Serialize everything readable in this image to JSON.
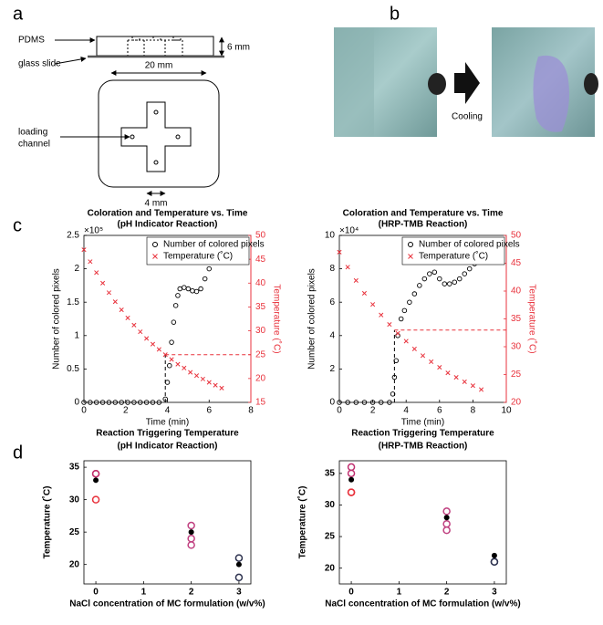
{
  "panels": {
    "a": "a",
    "b": "b",
    "c": "c",
    "d": "d"
  },
  "diagram": {
    "pdms": "PDMS",
    "glass": "glass slide",
    "height": "6 mm",
    "width": "20 mm",
    "channel": [
      "loading",
      "channel"
    ],
    "arm": "4 mm"
  },
  "photos": {
    "arrow_label": "Cooling"
  },
  "chart_data": [
    {
      "type": "scatter",
      "title": "Coloration and Temperature vs. Time",
      "subtitle": "(pH Indicator Reaction)",
      "xlabel": "Time (min)",
      "ylabel": "Number of colored pixels",
      "y2label": "Temperature (˚C)",
      "y_multiplier": "×10⁵",
      "xlim": [
        0,
        8
      ],
      "xticks": [
        0,
        2,
        4,
        6,
        8
      ],
      "ylim": [
        0,
        2.5
      ],
      "yticks": [
        0,
        0.5,
        1,
        1.5,
        2,
        2.5
      ],
      "y2lim": [
        15,
        50
      ],
      "y2ticks": [
        15,
        20,
        25,
        30,
        35,
        40,
        45,
        50
      ],
      "y2color": "#e8323c",
      "legend": "upper right",
      "threshold": {
        "x": 3.9,
        "y": 25
      },
      "series": [
        {
          "name": "Number of colored pixels",
          "color": "#000000",
          "marker": "o",
          "x": [
            0,
            0.3,
            0.6,
            0.9,
            1.2,
            1.5,
            1.8,
            2.1,
            2.4,
            2.7,
            3.0,
            3.3,
            3.6,
            3.9,
            4.0,
            4.1,
            4.2,
            4.3,
            4.4,
            4.5,
            4.6,
            4.8,
            5.0,
            5.2,
            5.4,
            5.6,
            5.8,
            6.0,
            6.2,
            6.4
          ],
          "values": [
            0,
            0,
            0,
            0,
            0,
            0,
            0,
            0,
            0,
            0,
            0,
            0,
            0,
            0.05,
            0.3,
            0.55,
            0.9,
            1.2,
            1.45,
            1.6,
            1.7,
            1.72,
            1.7,
            1.67,
            1.66,
            1.7,
            1.85,
            2.0,
            2.1,
            2.2
          ]
        },
        {
          "name": "Temperature (˚C)",
          "color": "#e8323c",
          "marker": "x",
          "axis": "y2",
          "x": [
            0,
            0.3,
            0.6,
            0.9,
            1.2,
            1.5,
            1.8,
            2.1,
            2.4,
            2.7,
            3.0,
            3.3,
            3.6,
            3.9,
            4.2,
            4.5,
            4.8,
            5.1,
            5.4,
            5.7,
            6.0,
            6.3,
            6.6
          ],
          "values": [
            47.0,
            44.5,
            42.2,
            40.0,
            38.0,
            36.1,
            34.4,
            32.7,
            31.2,
            29.8,
            28.4,
            27.2,
            26.1,
            25.0,
            24.0,
            23.0,
            22.2,
            21.3,
            20.6,
            19.9,
            19.2,
            18.6,
            18.0
          ]
        }
      ]
    },
    {
      "type": "scatter",
      "title": "Coloration and Temperature vs. Time",
      "subtitle": "(HRP-TMB Reaction)",
      "xlabel": "Time (min)",
      "ylabel": "Number of colored pixels",
      "y2label": "Temperature (˚C)",
      "y_multiplier": "×10⁴",
      "xlim": [
        0,
        10
      ],
      "xticks": [
        0,
        2,
        4,
        6,
        8,
        10
      ],
      "ylim": [
        0,
        10
      ],
      "yticks": [
        0,
        2,
        4,
        6,
        8,
        10
      ],
      "y2lim": [
        20,
        50
      ],
      "y2ticks": [
        20,
        25,
        30,
        35,
        40,
        45,
        50
      ],
      "y2color": "#e8323c",
      "legend": "upper right",
      "threshold": {
        "x": 3.3,
        "y": 33
      },
      "series": [
        {
          "name": "Number of colored pixels",
          "color": "#000000",
          "marker": "o",
          "x": [
            0,
            0.5,
            1.0,
            1.5,
            2.0,
            2.5,
            3.0,
            3.2,
            3.3,
            3.4,
            3.5,
            3.7,
            3.9,
            4.2,
            4.5,
            4.8,
            5.1,
            5.4,
            5.7,
            6.0,
            6.3,
            6.6,
            6.9,
            7.2,
            7.5,
            7.8,
            8.1,
            8.4,
            8.7
          ],
          "values": [
            0,
            0,
            0,
            0,
            0,
            0,
            0,
            0.5,
            1.5,
            2.5,
            4.0,
            5.0,
            5.5,
            6.0,
            6.5,
            7.0,
            7.4,
            7.7,
            7.8,
            7.4,
            7.1,
            7.1,
            7.2,
            7.4,
            7.7,
            8.0,
            8.3,
            8.6,
            8.9
          ]
        },
        {
          "name": "Temperature (˚C)",
          "color": "#e8323c",
          "marker": "x",
          "axis": "y2",
          "x": [
            0,
            0.5,
            1.0,
            1.5,
            2.0,
            2.5,
            3.0,
            3.5,
            4.0,
            4.5,
            5.0,
            5.5,
            6.0,
            6.5,
            7.0,
            7.5,
            8.0,
            8.5
          ],
          "values": [
            47.0,
            44.3,
            41.9,
            39.6,
            37.6,
            35.7,
            34.0,
            32.4,
            31.0,
            29.6,
            28.4,
            27.3,
            26.3,
            25.3,
            24.5,
            23.7,
            23.0,
            22.3
          ]
        }
      ]
    },
    {
      "type": "scatter",
      "title": "Reaction Triggering Temperature",
      "subtitle": "(pH Indicator Reaction)",
      "xlabel": "NaCl concentration of MC formulation (w/v%)",
      "ylabel": "Temperature (˚C)",
      "xlim": [
        -0.25,
        3.25
      ],
      "xticks": [
        0,
        1,
        2,
        3
      ],
      "ylim": [
        17,
        36
      ],
      "yticks": [
        20,
        25,
        30,
        35
      ],
      "series": [
        {
          "marker": "o",
          "x": [
            0,
            0,
            0,
            2,
            2,
            2,
            3,
            3
          ],
          "values": [
            30,
            34,
            34,
            23,
            24,
            26,
            18,
            21
          ],
          "colors": [
            "#e8323c",
            "#e8323c",
            "#c03070",
            "#c04080",
            "#c04080",
            "#c04080",
            "#2e3350",
            "#2e3350"
          ]
        },
        {
          "marker": "filled",
          "color": "#000000",
          "x": [
            0,
            2,
            3
          ],
          "values": [
            33,
            25,
            20
          ]
        }
      ]
    },
    {
      "type": "scatter",
      "title": "Reaction Triggering Temperature",
      "subtitle": "(HRP-TMB Reaction)",
      "xlabel": "NaCl concentration of MC formulation (w/v%)",
      "ylabel": "Temperature (˚C)",
      "xlim": [
        -0.25,
        3.25
      ],
      "xticks": [
        0,
        1,
        2,
        3
      ],
      "ylim": [
        17.5,
        37
      ],
      "yticks": [
        20,
        25,
        30,
        35
      ],
      "series": [
        {
          "marker": "o",
          "x": [
            0,
            0,
            0,
            0,
            2,
            2,
            2,
            3,
            3
          ],
          "values": [
            32,
            32,
            35,
            36,
            26,
            27,
            29,
            21,
            21
          ],
          "colors": [
            "#e8323c",
            "#e8323c",
            "#c03070",
            "#c03070",
            "#c04080",
            "#c04080",
            "#c04080",
            "#2e3350",
            "#2e3350"
          ]
        },
        {
          "marker": "filled",
          "color": "#000000",
          "x": [
            0,
            2,
            3
          ],
          "values": [
            34,
            28,
            22
          ]
        }
      ]
    }
  ]
}
